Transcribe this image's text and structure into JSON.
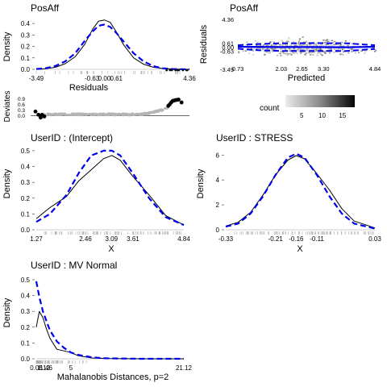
{
  "chart_data": [
    {
      "type": "line",
      "panel": "residual-density",
      "title": "PosAff",
      "xlabel": "Residuals",
      "ylabel": "Density",
      "xticks": [
        "-3.49",
        "-0.63",
        "0.00",
        "0.61",
        "4.36"
      ],
      "yticks": [
        "0.0",
        "0.1",
        "0.2",
        "0.3",
        "0.4"
      ],
      "xlim": [
        -3.49,
        4.36
      ],
      "ylim": [
        0,
        0.45
      ],
      "series": [
        {
          "style": "solid",
          "color": "#000000",
          "x": [
            -3.49,
            -3.0,
            -2.5,
            -2.0,
            -1.5,
            -1.0,
            -0.6,
            -0.3,
            0.0,
            0.3,
            0.6,
            1.0,
            1.5,
            2.0,
            2.5,
            3.0,
            3.5,
            4.0,
            4.36
          ],
          "y": [
            0.0,
            0.005,
            0.018,
            0.05,
            0.11,
            0.22,
            0.35,
            0.42,
            0.43,
            0.41,
            0.33,
            0.21,
            0.1,
            0.045,
            0.018,
            0.007,
            0.003,
            0.001,
            0.0
          ]
        },
        {
          "style": "dashed",
          "color": "#0000ee",
          "x": [
            -3.49,
            -3.0,
            -2.5,
            -2.0,
            -1.5,
            -1.0,
            -0.6,
            -0.3,
            0.0,
            0.3,
            0.6,
            1.0,
            1.5,
            2.0,
            2.5,
            3.0,
            3.5,
            4.0,
            4.36
          ],
          "y": [
            0.003,
            0.01,
            0.03,
            0.07,
            0.14,
            0.25,
            0.33,
            0.38,
            0.39,
            0.37,
            0.32,
            0.24,
            0.14,
            0.07,
            0.028,
            0.009,
            0.003,
            0.001,
            0.0
          ]
        }
      ]
    },
    {
      "type": "scatter",
      "panel": "residual-vs-predicted",
      "title": "PosAff",
      "xlabel": "Predicted",
      "ylabel": "Residuals",
      "xticks": [
        "0.73",
        "2.03",
        "2.65",
        "3.30",
        "4.84"
      ],
      "yticks": [
        "-3.49",
        "-0.63",
        "0.00",
        "0.61",
        "4.36"
      ],
      "xlim": [
        0.73,
        4.84
      ],
      "ylim": [
        -3.49,
        4.36
      ],
      "center_line": {
        "x": [
          0.73,
          2.0,
          3.0,
          4.0,
          4.84
        ],
        "y": [
          0.05,
          0.0,
          0.0,
          -0.02,
          0.05
        ]
      },
      "upper_band": {
        "x": [
          0.73,
          1.2,
          2.0,
          3.0,
          4.0,
          4.84
        ],
        "y": [
          0.3,
          0.45,
          0.6,
          0.62,
          0.6,
          0.3
        ]
      },
      "lower_band": {
        "x": [
          0.73,
          1.2,
          2.0,
          3.0,
          4.0,
          4.84
        ],
        "y": [
          -0.25,
          -0.45,
          -0.6,
          -0.62,
          -0.6,
          -0.3
        ]
      },
      "legend": {
        "title": "count",
        "ticks": [
          "5",
          "10",
          "15"
        ],
        "range": [
          1,
          18
        ],
        "placement": "bottom"
      }
    },
    {
      "type": "scatter",
      "panel": "deviates",
      "ylabel": "Deviates",
      "yticks": [
        "0.0",
        "0.3",
        "0.6",
        "0.9"
      ],
      "ylim": [
        -0.15,
        1.0
      ],
      "highlight_points": {
        "x": [
          0.0,
          0.02,
          0.035,
          0.045,
          0.06,
          0.9,
          0.91,
          0.92,
          0.93,
          0.94,
          0.95,
          0.96,
          0.97,
          0.99
        ],
        "y": [
          0.22,
          0.05,
          -0.1,
          0.05,
          -0.04,
          0.52,
          0.6,
          0.7,
          0.78,
          0.8,
          0.82,
          0.84,
          0.85,
          0.7
        ]
      }
    },
    {
      "type": "line",
      "panel": "intercept-density",
      "title": "UserID : (Intercept)",
      "xlabel": "X",
      "ylabel": "Density",
      "xticks": [
        "1.27",
        "2.46",
        "3.09",
        "3.61",
        "4.84"
      ],
      "yticks": [
        "0.0",
        "0.1",
        "0.2",
        "0.3",
        "0.4",
        "0.5"
      ],
      "xlim": [
        1.27,
        4.84
      ],
      "ylim": [
        0,
        0.52
      ],
      "series": [
        {
          "style": "solid",
          "color": "#000000",
          "x": [
            1.27,
            1.6,
            2.0,
            2.3,
            2.6,
            2.9,
            3.1,
            3.3,
            3.6,
            4.0,
            4.4,
            4.84
          ],
          "y": [
            0.07,
            0.14,
            0.21,
            0.31,
            0.38,
            0.45,
            0.47,
            0.44,
            0.34,
            0.22,
            0.09,
            0.03
          ]
        },
        {
          "style": "dashed",
          "color": "#0000ee",
          "x": [
            1.27,
            1.6,
            2.0,
            2.3,
            2.6,
            2.9,
            3.1,
            3.3,
            3.6,
            4.0,
            4.4,
            4.84
          ],
          "y": [
            0.05,
            0.1,
            0.22,
            0.36,
            0.47,
            0.5,
            0.5,
            0.47,
            0.36,
            0.2,
            0.08,
            0.03
          ]
        }
      ]
    },
    {
      "type": "line",
      "panel": "stress-density",
      "title": "UserID : STRESS",
      "xlabel": "X",
      "ylabel": "Density",
      "xticks": [
        "-0.33",
        "-0.21",
        "-0.16",
        "-0.11",
        "0.03"
      ],
      "yticks": [
        "0",
        "2",
        "4",
        "6"
      ],
      "xlim": [
        -0.33,
        0.03
      ],
      "ylim": [
        0,
        6.6
      ],
      "series": [
        {
          "style": "solid",
          "color": "#000000",
          "x": [
            -0.33,
            -0.3,
            -0.27,
            -0.24,
            -0.21,
            -0.18,
            -0.16,
            -0.14,
            -0.11,
            -0.08,
            -0.05,
            -0.02,
            0.03
          ],
          "y": [
            0.3,
            0.6,
            1.4,
            2.8,
            4.4,
            5.6,
            5.95,
            5.7,
            4.5,
            3.2,
            1.7,
            0.7,
            0.15
          ]
        },
        {
          "style": "dashed",
          "color": "#0000ee",
          "x": [
            -0.33,
            -0.3,
            -0.27,
            -0.24,
            -0.21,
            -0.18,
            -0.16,
            -0.14,
            -0.11,
            -0.08,
            -0.05,
            -0.02,
            0.03
          ],
          "y": [
            0.25,
            0.5,
            1.3,
            2.7,
            4.4,
            5.8,
            6.1,
            5.8,
            4.4,
            2.7,
            1.3,
            0.5,
            0.1
          ]
        }
      ]
    },
    {
      "type": "line",
      "panel": "mahalanobis-density",
      "title": "UserID : MV Normal",
      "xlabel": "Mahalanobis Distances, p=2",
      "ylabel": "Density",
      "xticks": [
        "0.06",
        "1.12",
        "1.46",
        "5",
        "21.12"
      ],
      "yticks": [
        "0.0",
        "0.1",
        "0.2",
        "0.3",
        "0.4",
        "0.5"
      ],
      "xlim": [
        0.06,
        21.12
      ],
      "ylim": [
        0,
        0.52
      ],
      "series": [
        {
          "style": "solid",
          "color": "#000000",
          "x": [
            0.06,
            0.5,
            1.0,
            1.5,
            2.0,
            3.0,
            4.0,
            5.0,
            6.0,
            8.0,
            10.0,
            15.0,
            21.12
          ],
          "y": [
            0.2,
            0.3,
            0.26,
            0.19,
            0.13,
            0.06,
            0.05,
            0.04,
            0.02,
            0.005,
            0.002,
            0.0,
            0.0
          ]
        },
        {
          "style": "dashed",
          "color": "#0000ee",
          "x": [
            0.06,
            0.5,
            1.0,
            1.5,
            2.0,
            3.0,
            4.0,
            5.0,
            6.0,
            8.0,
            10.0,
            15.0,
            21.12
          ],
          "y": [
            0.49,
            0.39,
            0.3,
            0.24,
            0.18,
            0.11,
            0.07,
            0.04,
            0.025,
            0.009,
            0.003,
            0.0,
            0.0
          ]
        }
      ]
    }
  ]
}
